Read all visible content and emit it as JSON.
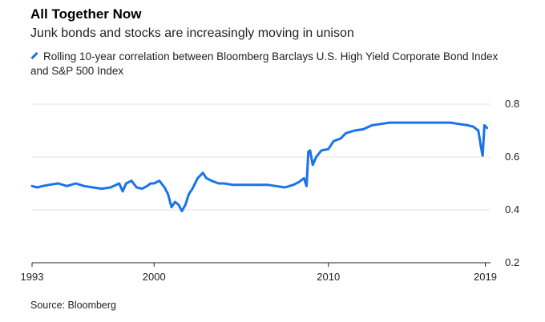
{
  "header": {
    "title": "All Together Now",
    "subtitle": "Junk bonds and stocks are increasingly moving in unison"
  },
  "legend": {
    "label": "Rolling 10-year correlation between Bloomberg Barclays U.S. High Yield Corporate Bond Index and S&P 500 Index"
  },
  "footer": {
    "source": "Source: Bloomberg"
  },
  "chart_data": {
    "type": "line",
    "title": "All Together Now",
    "subtitle": "Junk bonds and stocks are increasingly moving in unison",
    "xlabel": "",
    "ylabel": "",
    "xlim": [
      1993,
      2019.3
    ],
    "ylim": [
      0.2,
      0.8
    ],
    "x_ticks": [
      "1993",
      "2000",
      "2010",
      "2019"
    ],
    "y_ticks": [
      "0.2",
      "0.4",
      "0.6",
      "0.8"
    ],
    "y_axis_side": "right",
    "grid": "horizontal",
    "color": "#1a73e8",
    "series": [
      {
        "name": "Rolling 10-year correlation between Bloomberg Barclays U.S. High Yield Corporate Bond Index and S&P 500 Index",
        "x": [
          1993.0,
          1993.3,
          1993.6,
          1994.0,
          1994.5,
          1995.0,
          1995.5,
          1996.0,
          1996.5,
          1997.0,
          1997.5,
          1998.0,
          1998.2,
          1998.4,
          1998.7,
          1999.0,
          1999.3,
          1999.6,
          1999.8,
          2000.0,
          2000.3,
          2000.6,
          2000.8,
          2001.0,
          2001.2,
          2001.4,
          2001.6,
          2001.8,
          2002.0,
          2002.2,
          2002.5,
          2002.8,
          2003.0,
          2003.3,
          2003.7,
          2004.0,
          2004.5,
          2005.0,
          2005.5,
          2006.0,
          2006.5,
          2007.0,
          2007.5,
          2008.0,
          2008.3,
          2008.6,
          2008.75,
          2008.85,
          2008.95,
          2009.1,
          2009.3,
          2009.6,
          2010.0,
          2010.3,
          2010.7,
          2011.0,
          2011.5,
          2012.0,
          2012.5,
          2013.0,
          2013.5,
          2014.0,
          2014.5,
          2015.0,
          2015.5,
          2016.0,
          2016.5,
          2017.0,
          2017.5,
          2018.0,
          2018.3,
          2018.6,
          2018.75,
          2018.85,
          2018.95,
          2019.1
        ],
        "values": [
          0.49,
          0.485,
          0.49,
          0.495,
          0.5,
          0.49,
          0.5,
          0.49,
          0.485,
          0.48,
          0.485,
          0.5,
          0.47,
          0.5,
          0.51,
          0.485,
          0.48,
          0.49,
          0.5,
          0.5,
          0.51,
          0.485,
          0.46,
          0.41,
          0.43,
          0.42,
          0.395,
          0.42,
          0.46,
          0.48,
          0.52,
          0.54,
          0.52,
          0.51,
          0.5,
          0.5,
          0.495,
          0.495,
          0.495,
          0.495,
          0.495,
          0.49,
          0.485,
          0.495,
          0.505,
          0.52,
          0.49,
          0.62,
          0.625,
          0.57,
          0.6,
          0.625,
          0.63,
          0.66,
          0.67,
          0.69,
          0.7,
          0.705,
          0.72,
          0.725,
          0.73,
          0.73,
          0.73,
          0.73,
          0.73,
          0.73,
          0.73,
          0.73,
          0.725,
          0.72,
          0.715,
          0.7,
          0.64,
          0.605,
          0.72,
          0.71
        ]
      }
    ]
  }
}
